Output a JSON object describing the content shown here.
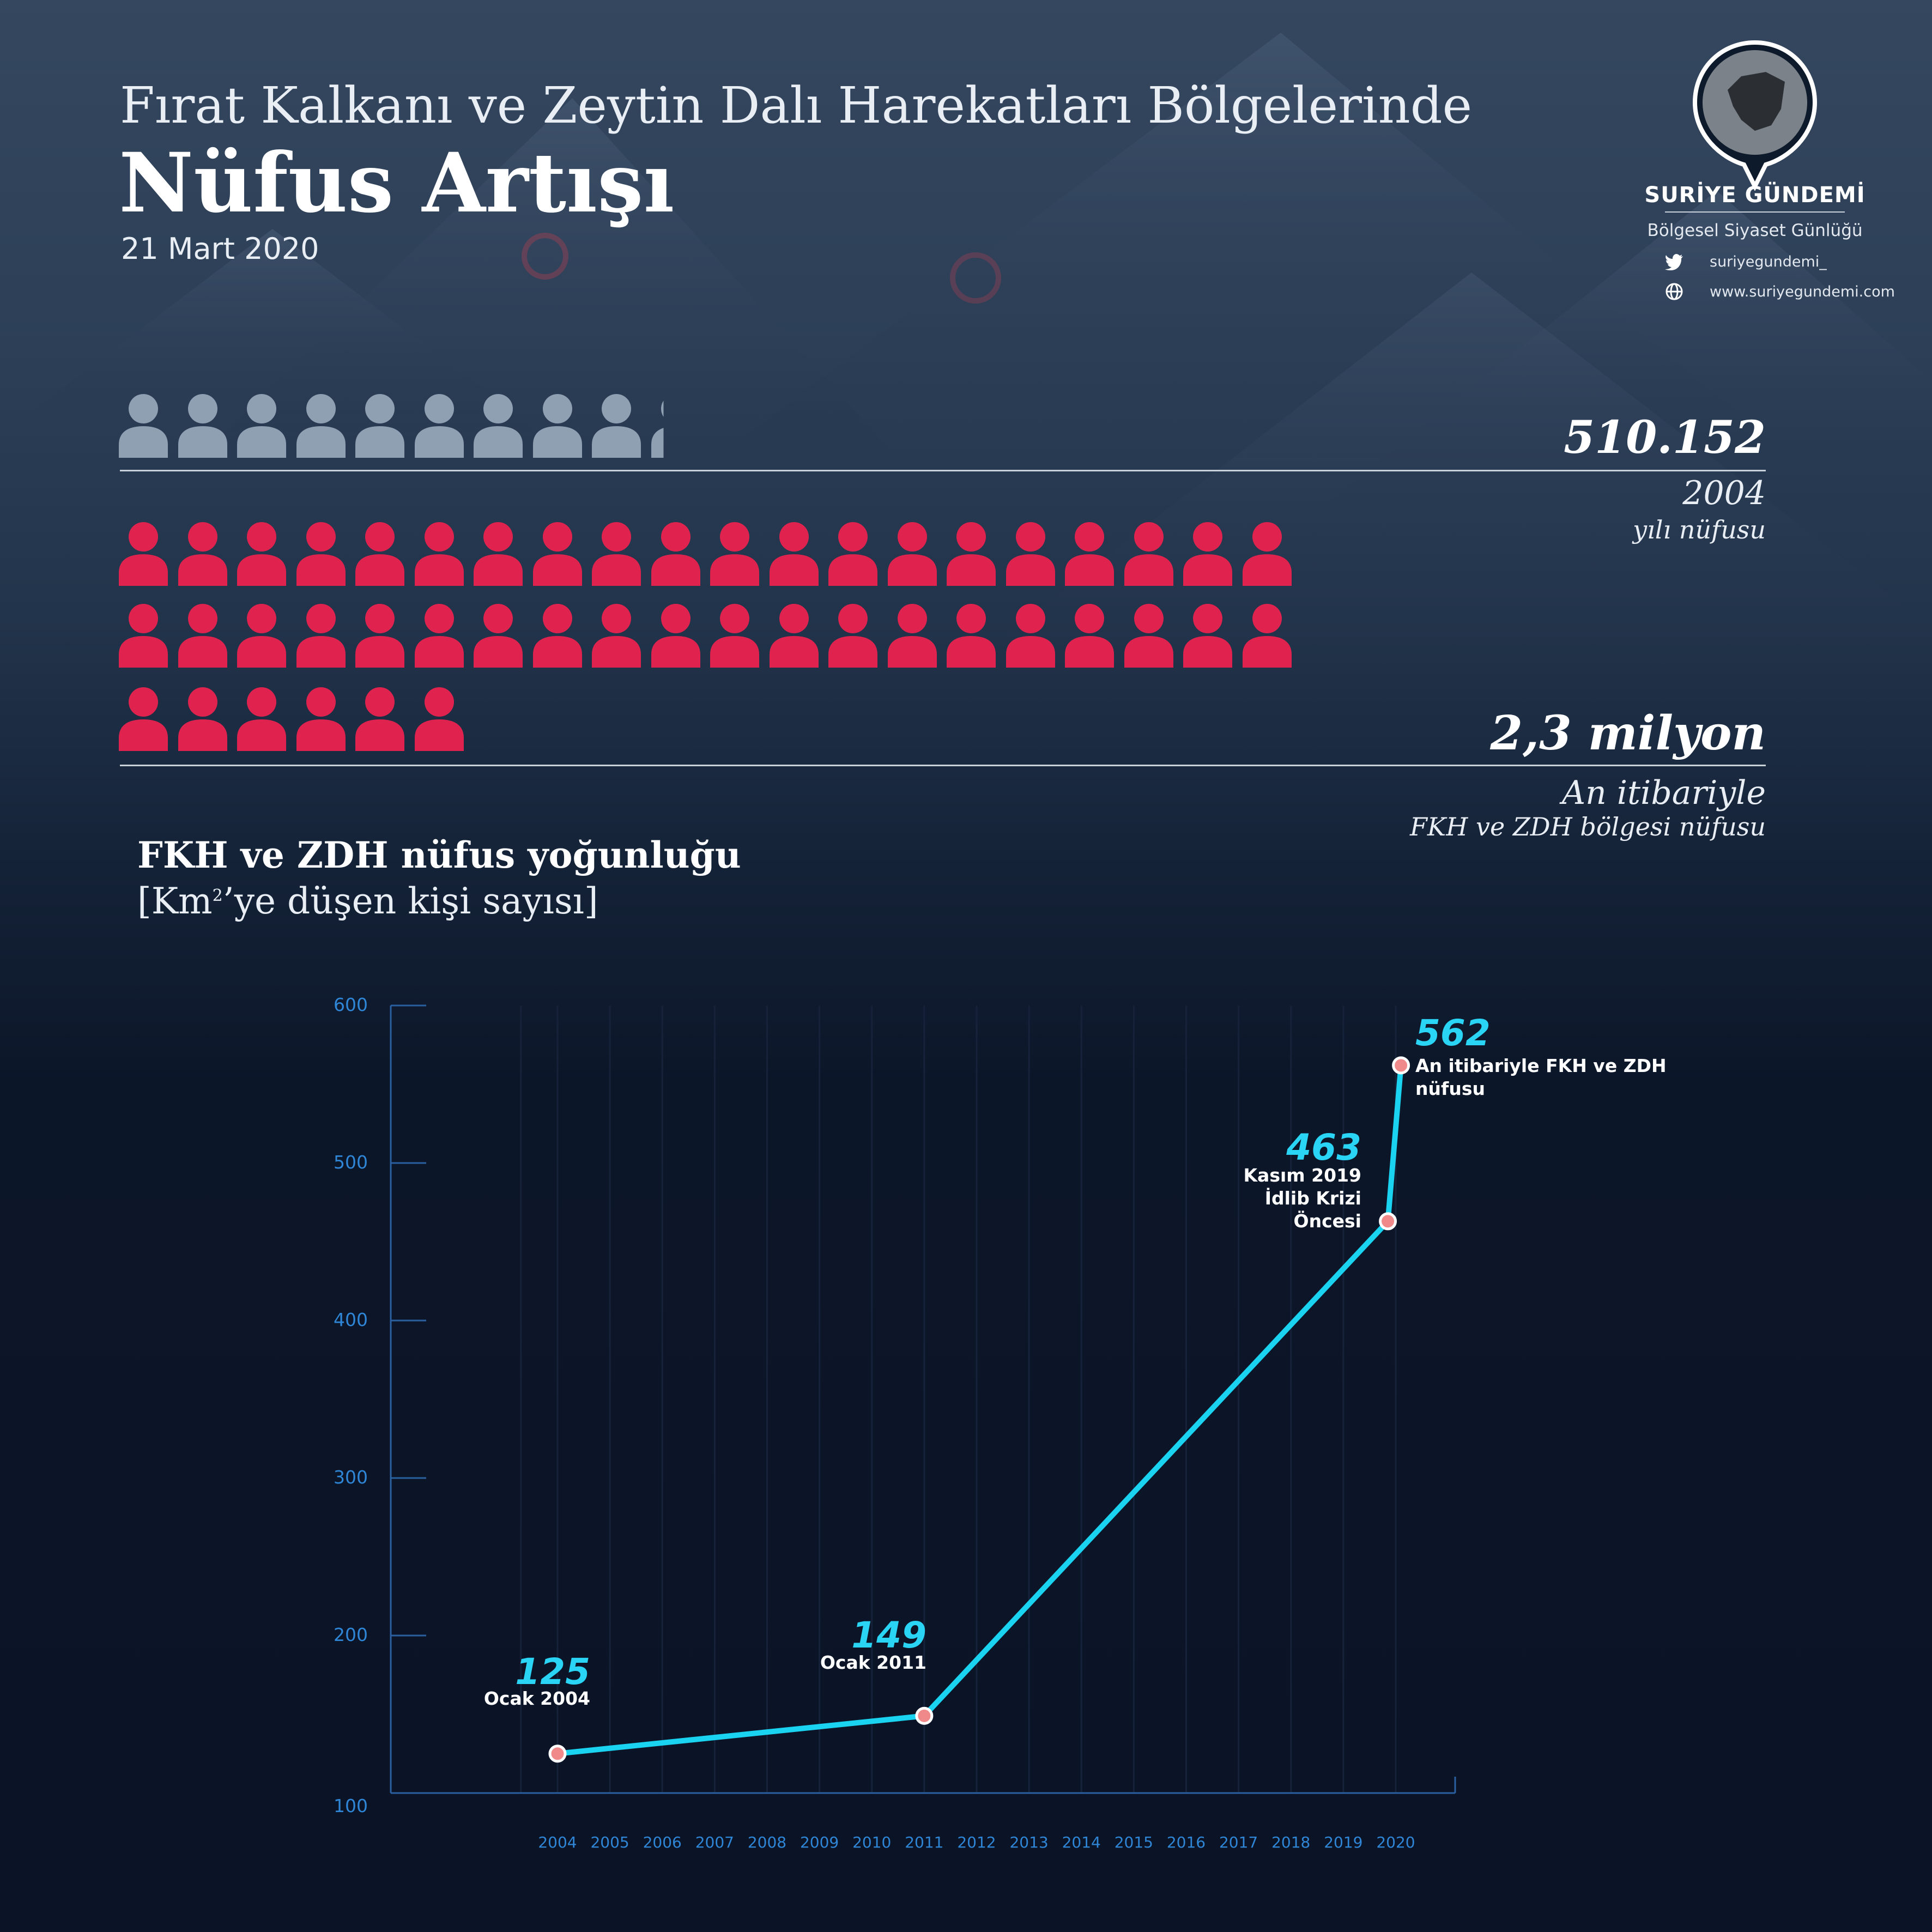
{
  "header": {
    "pretitle": "Fırat Kalkanı ve Zeytin Dalı Harekatları Bölgelerinde",
    "title": "Nüfus Artışı",
    "date": "21 Mart 2020"
  },
  "brand": {
    "name": "SURİYE GÜNDEMİ",
    "tagline": "Bölgesel Siyaset Günlüğü",
    "twitter": "suriyegundemi_",
    "website": "www.suriyegundemi.com"
  },
  "stats": {
    "population_2004": {
      "value": "510.152",
      "line1": "2004",
      "line2": "yılı nüfusu",
      "icon_count": 9.25,
      "color": "#8fa0b3"
    },
    "population_now": {
      "value": "2,3 milyon",
      "line1": "An itibariyle",
      "line2": "FKH ve ZDH bölgesi nüfusu",
      "icon_count": 46,
      "color": "#e0234e"
    }
  },
  "chart_title": "FKH ve ZDH nüfus yoğunluğu",
  "chart_subtitle_pre": "[Km",
  "chart_subtitle_sup": "2",
  "chart_subtitle_post": "’ye düşen kişi sayısı]",
  "chart_data": {
    "type": "line",
    "title": "FKH ve ZDH nüfus yoğunluğu",
    "ylim": [
      100,
      600
    ],
    "y_ticks": [
      "100",
      "200",
      "300",
      "400",
      "500",
      "600"
    ],
    "x_ticks": [
      "2004",
      "2005",
      "2006",
      "2007",
      "2008",
      "2009",
      "2010",
      "2011",
      "2012",
      "2013",
      "2014",
      "2015",
      "2016",
      "2017",
      "2018",
      "2019",
      "2020"
    ],
    "points": [
      {
        "x": 2004,
        "y": 125,
        "value_label": "125",
        "label_lines": [
          "Ocak 2004"
        ]
      },
      {
        "x": 2011,
        "y": 149,
        "value_label": "149",
        "label_lines": [
          "Ocak 2011"
        ]
      },
      {
        "x": 2019.85,
        "y": 463,
        "value_label": "463",
        "label_lines": [
          "Kasım 2019",
          "İdlib Krizi",
          "Öncesi"
        ]
      },
      {
        "x": 2020.1,
        "y": 562,
        "value_label": "562",
        "label_lines": [
          "An itibariyle FKH ve ZDH",
          "nüfusu"
        ]
      }
    ],
    "line_color": "#19d3f0",
    "marker_color": "#f08a8a",
    "grid": true
  }
}
